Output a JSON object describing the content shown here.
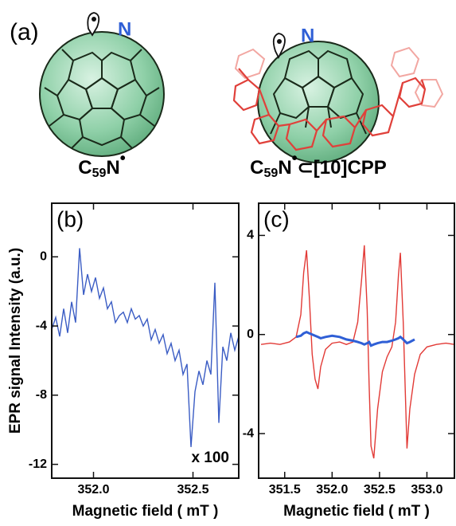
{
  "panel_label": "(a)",
  "molecules": [
    {
      "atom": "N",
      "label": [
        "C",
        "59",
        "N",
        "•"
      ]
    },
    {
      "atom": "N",
      "label": [
        "C",
        "59",
        "N",
        "•",
        "⊂[10]CPP"
      ]
    }
  ],
  "chart_data": [
    {
      "type": "line",
      "panel": "(b)",
      "ylabel": "EPR signal Intensity (a.u.)",
      "xlabel": "Magnetic field ( mT )",
      "annotation": "x 100",
      "xlim": [
        351.79,
        352.73
      ],
      "xticks": [
        {
          "value": 352,
          "label": "352.0"
        },
        352.5
      ],
      "ylim": [
        -12.8,
        3.1
      ],
      "yticks": [
        0,
        -4,
        -8,
        -12
      ],
      "x": [
        351.79,
        351.81,
        351.83,
        351.85,
        351.87,
        351.89,
        351.91,
        351.93,
        351.95,
        351.97,
        351.99,
        352.01,
        352.03,
        352.05,
        352.07,
        352.09,
        352.11,
        352.13,
        352.15,
        352.17,
        352.19,
        352.21,
        352.23,
        352.25,
        352.27,
        352.29,
        352.31,
        352.33,
        352.35,
        352.37,
        352.39,
        352.41,
        352.43,
        352.45,
        352.47,
        352.49,
        352.51,
        352.53,
        352.55,
        352.57,
        352.59,
        352.61,
        352.63,
        352.65,
        352.67,
        352.69,
        352.71,
        352.73
      ],
      "series": [
        {
          "color": "#3a5cc4",
          "values": [
            -4.2,
            -3.5,
            -4.6,
            -3.0,
            -4.4,
            -2.6,
            -3.8,
            0.5,
            -2.2,
            -1.0,
            -2.0,
            -1.2,
            -2.4,
            -1.8,
            -3.0,
            -2.6,
            -3.8,
            -3.4,
            -3.2,
            -3.8,
            -3.0,
            -3.6,
            -3.4,
            -4.0,
            -3.6,
            -4.8,
            -4.2,
            -5.0,
            -4.5,
            -5.6,
            -5.0,
            -6.0,
            -5.4,
            -6.8,
            -6.2,
            -11.0,
            -7.8,
            -6.6,
            -7.4,
            -6.0,
            -6.8,
            -1.5,
            -9.6,
            -5.2,
            -6.0,
            -4.4,
            -5.4,
            -4.6
          ]
        }
      ]
    },
    {
      "type": "line",
      "panel": "(c)",
      "xlabel": "Magnetic field ( mT )",
      "xlim": [
        351.225,
        353.29
      ],
      "xticks": [
        351.5,
        {
          "value": 352,
          "label": "352.0"
        },
        352.5,
        {
          "value": 353,
          "label": "353.0"
        }
      ],
      "ylim": [
        -5.8,
        5.3
      ],
      "yticks": [
        4,
        0,
        -4
      ],
      "x": [
        351.25,
        351.35,
        351.45,
        351.55,
        351.62,
        351.67,
        351.7,
        351.73,
        351.76,
        351.79,
        351.82,
        351.85,
        351.88,
        351.93,
        352.0,
        352.08,
        352.15,
        352.22,
        352.27,
        352.31,
        352.34,
        352.37,
        352.39,
        352.41,
        352.44,
        352.48,
        352.53,
        352.58,
        352.63,
        352.67,
        352.7,
        352.72,
        352.75,
        352.79,
        352.82,
        352.87,
        352.93,
        353.0,
        353.1,
        353.2,
        353.29
      ],
      "series": [
        {
          "color": "#e23a36",
          "values": [
            -0.4,
            -0.35,
            -0.4,
            -0.3,
            -0.1,
            0.8,
            2.5,
            3.4,
            1.5,
            -0.8,
            -1.8,
            -2.2,
            -1.3,
            -0.6,
            -0.35,
            -0.3,
            -0.4,
            -0.3,
            0.5,
            2.2,
            3.6,
            1.0,
            -2.0,
            -4.5,
            -5.0,
            -3.0,
            -1.5,
            -0.9,
            -0.5,
            0.5,
            2.4,
            3.3,
            0.5,
            -4.6,
            -3.0,
            -1.6,
            -0.8,
            -0.5,
            -0.4,
            -0.35,
            -0.4
          ]
        },
        {
          "color": "#2f5fd6",
          "values": [
            null,
            null,
            null,
            null,
            -0.1,
            -0.05,
            0.05,
            0.1,
            0.05,
            0.0,
            -0.05,
            -0.1,
            -0.15,
            -0.1,
            -0.05,
            -0.1,
            -0.2,
            -0.25,
            -0.3,
            -0.35,
            -0.4,
            -0.35,
            -0.3,
            -0.45,
            -0.4,
            -0.35,
            -0.3,
            -0.3,
            -0.25,
            -0.2,
            -0.15,
            -0.1,
            -0.2,
            -0.35,
            -0.3,
            -0.2,
            null,
            null,
            null,
            null,
            null
          ]
        }
      ]
    }
  ]
}
